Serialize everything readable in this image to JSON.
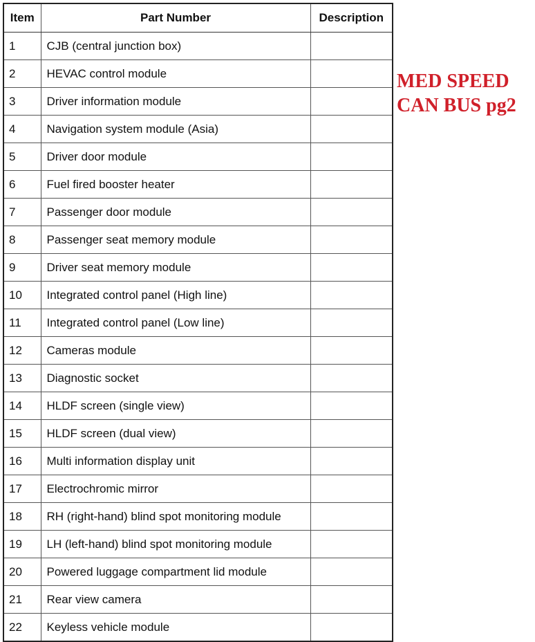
{
  "table": {
    "headers": [
      "Item",
      "Part Number",
      "Description"
    ],
    "rows": [
      {
        "item": "1",
        "part": "CJB (central junction box)",
        "description": ""
      },
      {
        "item": "2",
        "part": "HEVAC control module",
        "description": ""
      },
      {
        "item": "3",
        "part": "Driver information module",
        "description": ""
      },
      {
        "item": "4",
        "part": "Navigation system module (Asia)",
        "description": ""
      },
      {
        "item": "5",
        "part": "Driver door module",
        "description": ""
      },
      {
        "item": "6",
        "part": "Fuel fired booster heater",
        "description": ""
      },
      {
        "item": "7",
        "part": "Passenger door module",
        "description": ""
      },
      {
        "item": "8",
        "part": "Passenger seat memory module",
        "description": ""
      },
      {
        "item": "9",
        "part": "Driver seat memory module",
        "description": ""
      },
      {
        "item": "10",
        "part": "Integrated control panel (High line)",
        "description": ""
      },
      {
        "item": "11",
        "part": "Integrated control panel (Low line)",
        "description": ""
      },
      {
        "item": "12",
        "part": "Cameras module",
        "description": ""
      },
      {
        "item": "13",
        "part": "Diagnostic socket",
        "description": ""
      },
      {
        "item": "14",
        "part": "HLDF screen (single view)",
        "description": ""
      },
      {
        "item": "15",
        "part": "HLDF screen (dual view)",
        "description": ""
      },
      {
        "item": "16",
        "part": "Multi information display unit",
        "description": ""
      },
      {
        "item": "17",
        "part": "Electrochromic mirror",
        "description": ""
      },
      {
        "item": "18",
        "part": "RH (right-hand) blind spot monitoring module",
        "description": ""
      },
      {
        "item": "19",
        "part": "LH (left-hand) blind spot monitoring module",
        "description": ""
      },
      {
        "item": "20",
        "part": "Powered luggage compartment lid module",
        "description": ""
      },
      {
        "item": "21",
        "part": "Rear view camera",
        "description": ""
      },
      {
        "item": "22",
        "part": "Keyless vehicle module",
        "description": ""
      }
    ]
  },
  "annotation": {
    "lines": [
      "MED SPEED",
      "CAN BUS pg2"
    ],
    "color": "#d0202a"
  }
}
